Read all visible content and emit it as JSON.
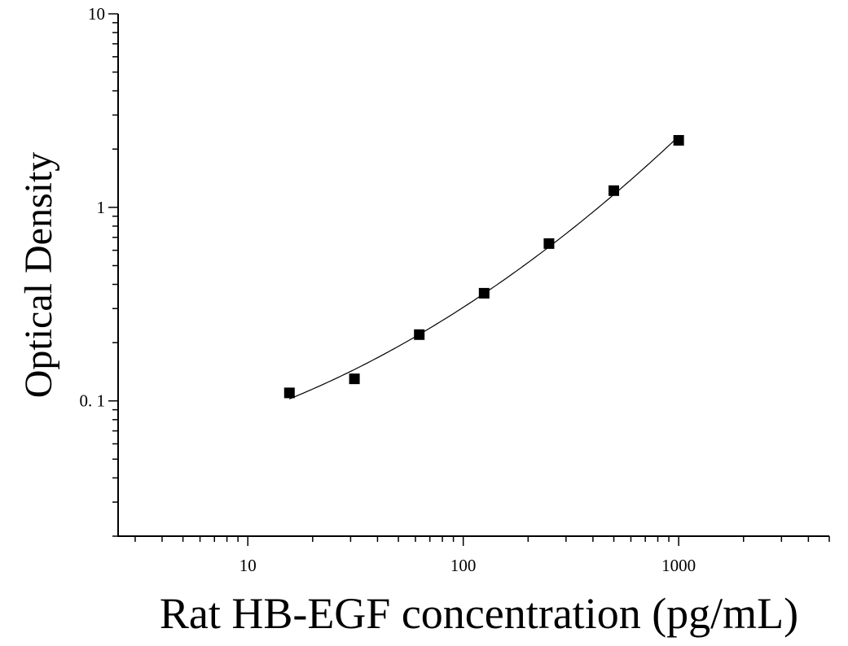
{
  "chart_data": {
    "type": "scatter",
    "title": "",
    "xlabel": "Rat HB-EGF concentration (pg/mL)",
    "ylabel": "Optical Density",
    "x_scale": "log",
    "y_scale": "log",
    "xlim": [
      2.5,
      5000
    ],
    "ylim": [
      0.02,
      10
    ],
    "x_ticks": [
      {
        "value": 10,
        "label": "10"
      },
      {
        "value": 100,
        "label": "100"
      },
      {
        "value": 1000,
        "label": "1000"
      }
    ],
    "y_ticks": [
      {
        "value": 0.1,
        "label": "0. 1"
      },
      {
        "value": 1,
        "label": "1"
      },
      {
        "value": 10,
        "label": "10"
      }
    ],
    "grid": false,
    "legend": false,
    "series": [
      {
        "marker": "square",
        "color": "#000000",
        "points": [
          {
            "x": 15.6,
            "y": 0.11
          },
          {
            "x": 31.25,
            "y": 0.13
          },
          {
            "x": 62.5,
            "y": 0.22
          },
          {
            "x": 125,
            "y": 0.36
          },
          {
            "x": 250,
            "y": 0.65
          },
          {
            "x": 500,
            "y": 1.22
          },
          {
            "x": 1000,
            "y": 2.22
          }
        ]
      }
    ],
    "fit_curve": {
      "color": "#000000",
      "x_range": [
        15.6,
        1000
      ]
    }
  }
}
